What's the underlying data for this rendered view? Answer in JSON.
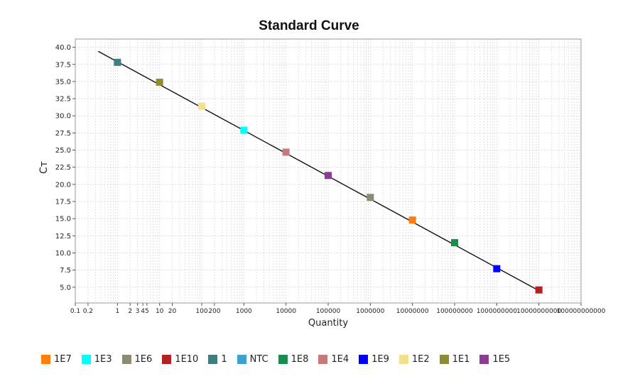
{
  "chart_data": {
    "type": "scatter",
    "title": "Standard Curve",
    "xlabel": "Quantity",
    "ylabel": "Cᴛ",
    "xscale": "log",
    "xlim": [
      0.1,
      100000000000
    ],
    "ylim": [
      2.7,
      41.2
    ],
    "grid": true,
    "legend_placement": "bottom",
    "x_tick_labels": [
      {
        "value": 0.1,
        "label": "0.1"
      },
      {
        "value": 0.2,
        "label": "0.2"
      },
      {
        "value": 1,
        "label": "1"
      },
      {
        "value": 2,
        "label": "2"
      },
      {
        "value": 3,
        "label": "3"
      },
      {
        "value": 4,
        "label": "4"
      },
      {
        "value": 5,
        "label": "5"
      },
      {
        "value": 10,
        "label": "10"
      },
      {
        "value": 20,
        "label": "20"
      },
      {
        "value": 100,
        "label": "100"
      },
      {
        "value": 200,
        "label": "200"
      },
      {
        "value": 1000,
        "label": "1000"
      },
      {
        "value": 10000,
        "label": "10000"
      },
      {
        "value": 100000,
        "label": "100000"
      },
      {
        "value": 1000000,
        "label": "1000000"
      },
      {
        "value": 10000000,
        "label": "10000000"
      },
      {
        "value": 100000000,
        "label": "100000000"
      },
      {
        "value": 1000000000,
        "label": "1000000000"
      },
      {
        "value": 10000000000,
        "label": "10000000000"
      },
      {
        "value": 100000000000,
        "label": "100000000000"
      }
    ],
    "y_ticks": [
      5.0,
      7.5,
      10.0,
      12.5,
      15.0,
      17.5,
      20.0,
      22.5,
      25.0,
      27.5,
      30.0,
      32.5,
      35.0,
      37.5,
      40.0
    ],
    "fit_line": {
      "x": [
        0.35,
        10000000000
      ],
      "y": [
        39.4,
        4.5
      ]
    },
    "series": [
      {
        "name": "1E7",
        "color": "#ff7f0e",
        "x": [
          10000000
        ],
        "y": [
          14.8
        ]
      },
      {
        "name": "1E3",
        "color": "#00ffff",
        "x": [
          1000
        ],
        "y": [
          27.9
        ]
      },
      {
        "name": "1E6",
        "color": "#8c8c73",
        "x": [
          1000000
        ],
        "y": [
          18.1
        ]
      },
      {
        "name": "1E10",
        "color": "#b22222",
        "x": [
          10000000000
        ],
        "y": [
          4.6
        ]
      },
      {
        "name": "1",
        "color": "#3d7f80",
        "x": [
          1
        ],
        "y": [
          37.8
        ]
      },
      {
        "name": "NTC",
        "color": "#3ca0d0",
        "x": [],
        "y": []
      },
      {
        "name": "1E8",
        "color": "#1a8c4e",
        "x": [
          100000000
        ],
        "y": [
          11.5
        ]
      },
      {
        "name": "1E4",
        "color": "#c87878",
        "x": [
          10000
        ],
        "y": [
          24.7
        ]
      },
      {
        "name": "1E9",
        "color": "#0000ff",
        "x": [
          1000000000
        ],
        "y": [
          7.7
        ]
      },
      {
        "name": "1E2",
        "color": "#f0e08c",
        "x": [
          100
        ],
        "y": [
          31.4
        ]
      },
      {
        "name": "1E1",
        "color": "#8c8c32",
        "x": [
          10
        ],
        "y": [
          34.9
        ]
      },
      {
        "name": "1E5",
        "color": "#8c3c96",
        "x": [
          100000
        ],
        "y": [
          21.3
        ]
      }
    ]
  }
}
